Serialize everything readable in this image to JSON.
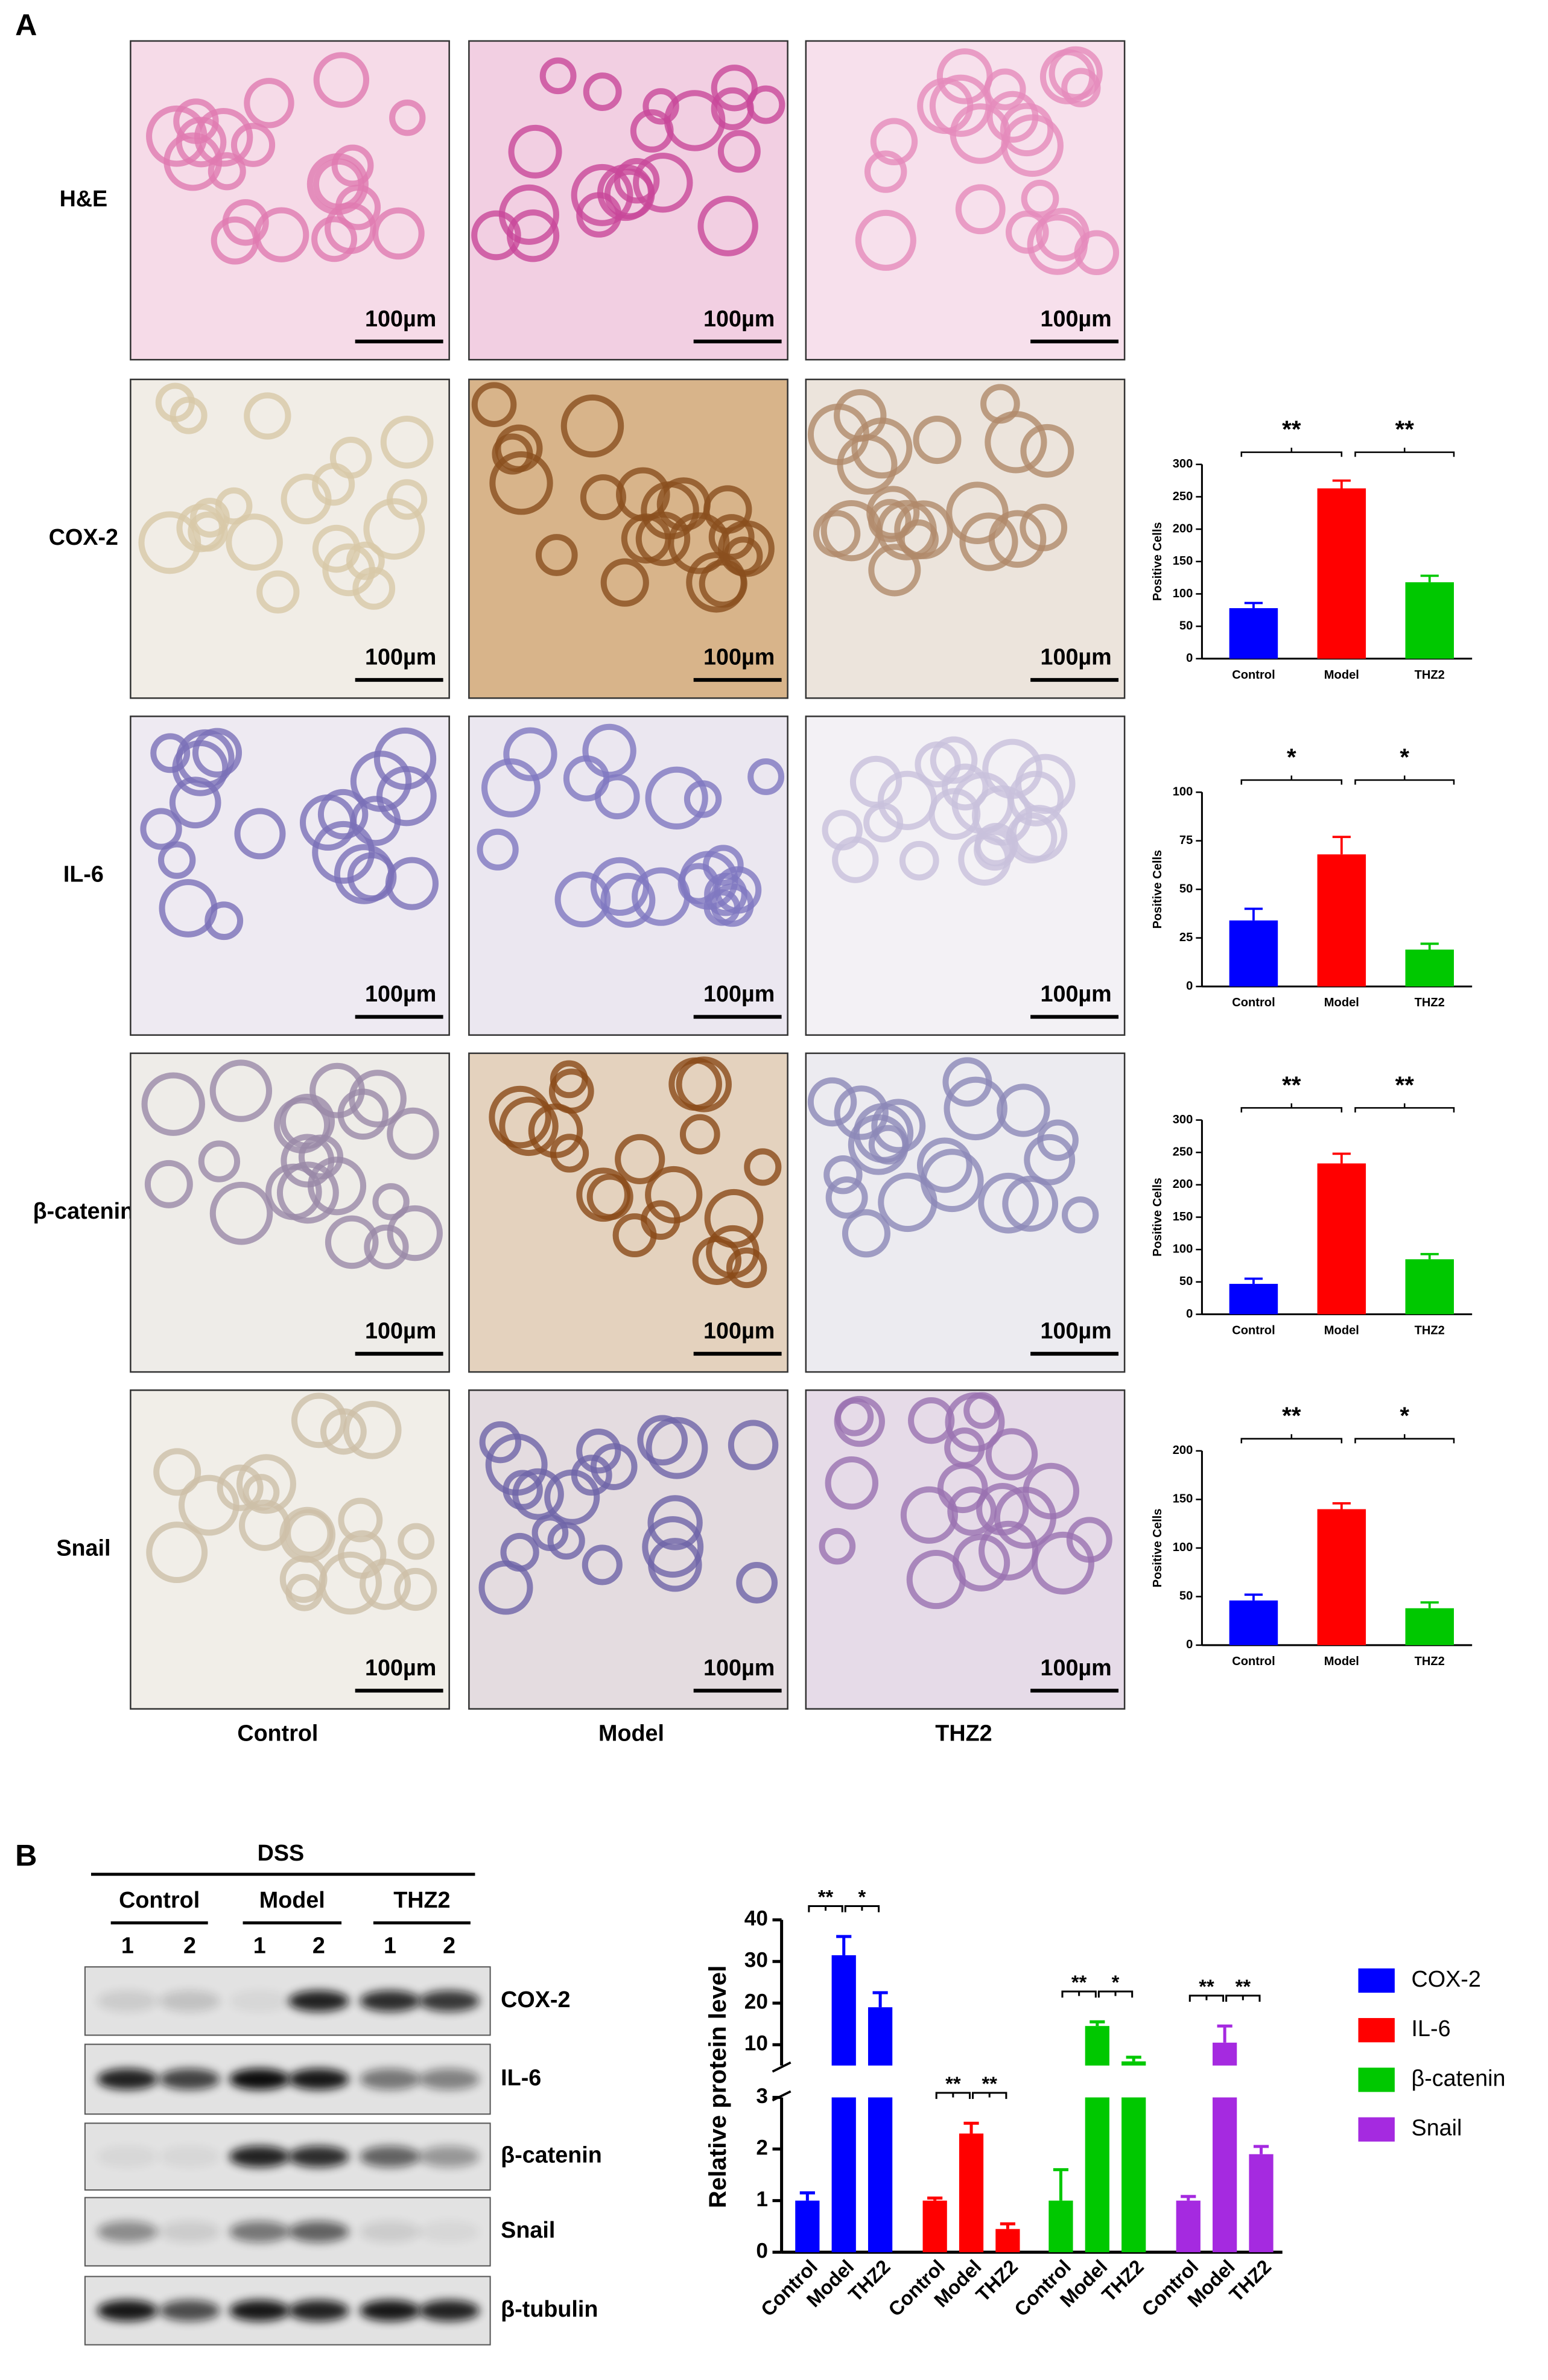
{
  "panel_labels": [
    "A",
    "B"
  ],
  "micrographs": {
    "rows": [
      "H&E",
      "COX-2",
      "IL-6",
      "β-catenin",
      "Snail"
    ],
    "columns": [
      "Control",
      "Model",
      "THZ2"
    ],
    "scale_bar": "100µm"
  },
  "blot": {
    "treatment": "DSS",
    "groups": [
      "Control",
      "Model",
      "THZ2"
    ],
    "lanes": [
      "1",
      "2"
    ],
    "proteins": [
      "COX-2",
      "IL-6",
      "β-catenin",
      "Snail",
      "β-tubulin"
    ]
  },
  "chart_data": [
    {
      "type": "bar",
      "ylabel": "Positive Cells",
      "categories": [
        "Control",
        "Model",
        "THZ2"
      ],
      "values": [
        78,
        263,
        118
      ],
      "errors": [
        8,
        12,
        10
      ],
      "colors": [
        "#0000ff",
        "#ff0000",
        "#00c800"
      ],
      "ylim": [
        0,
        300
      ],
      "yticks": [
        0,
        50,
        100,
        150,
        200,
        250,
        300
      ],
      "annotations": [
        "**",
        "**"
      ]
    },
    {
      "type": "bar",
      "ylabel": "Positive Cells",
      "categories": [
        "Control",
        "Model",
        "THZ2"
      ],
      "values": [
        34,
        68,
        19
      ],
      "errors": [
        6,
        9,
        3
      ],
      "colors": [
        "#0000ff",
        "#ff0000",
        "#00c800"
      ],
      "ylim": [
        0,
        100
      ],
      "yticks": [
        0,
        25,
        50,
        75,
        100
      ],
      "annotations": [
        "*",
        "*"
      ]
    },
    {
      "type": "bar",
      "ylabel": "Positive Cells",
      "categories": [
        "Control",
        "Model",
        "THZ2"
      ],
      "values": [
        47,
        233,
        85
      ],
      "errors": [
        8,
        15,
        8
      ],
      "colors": [
        "#0000ff",
        "#ff0000",
        "#00c800"
      ],
      "ylim": [
        0,
        300
      ],
      "yticks": [
        0,
        50,
        100,
        150,
        200,
        250,
        300
      ],
      "annotations": [
        "**",
        "**"
      ]
    },
    {
      "type": "bar",
      "ylabel": "Positive Cells",
      "categories": [
        "Control",
        "Model",
        "THZ2"
      ],
      "values": [
        46,
        140,
        38
      ],
      "errors": [
        6,
        6,
        6
      ],
      "colors": [
        "#0000ff",
        "#ff0000",
        "#00c800"
      ],
      "ylim": [
        0,
        200
      ],
      "yticks": [
        0,
        50,
        100,
        150,
        200
      ],
      "annotations": [
        "**",
        "*"
      ]
    },
    {
      "type": "broken_bar",
      "ylabel": "Relative protein level",
      "categories": [
        "Control",
        "Model",
        "THZ2"
      ],
      "ylim_lower": [
        0,
        3
      ],
      "yticks_lower": [
        0,
        1,
        2,
        3
      ],
      "ylim_upper": [
        5,
        40
      ],
      "yticks_upper": [
        10,
        20,
        30,
        40
      ],
      "series": [
        {
          "name": "COX-2",
          "color": "#0000ff",
          "values": [
            1,
            31.5,
            19
          ],
          "errors": [
            0.15,
            4.5,
            3.5
          ],
          "annotations": [
            "**",
            "*"
          ]
        },
        {
          "name": "IL-6",
          "color": "#ff0000",
          "values": [
            1,
            2.3,
            0.45
          ],
          "errors": [
            0.05,
            0.2,
            0.1
          ],
          "annotations": [
            "**",
            "**"
          ]
        },
        {
          "name": "β-catenin",
          "color": "#00c800",
          "values": [
            1,
            14.5,
            6
          ],
          "errors": [
            0.6,
            1,
            1
          ],
          "annotations": [
            "**",
            "*"
          ]
        },
        {
          "name": "Snail",
          "color": "#a52ae0",
          "values": [
            1,
            10.5,
            1.9
          ],
          "errors": [
            0.08,
            4,
            0.15
          ],
          "annotations": [
            "**",
            "**"
          ]
        }
      ]
    }
  ]
}
